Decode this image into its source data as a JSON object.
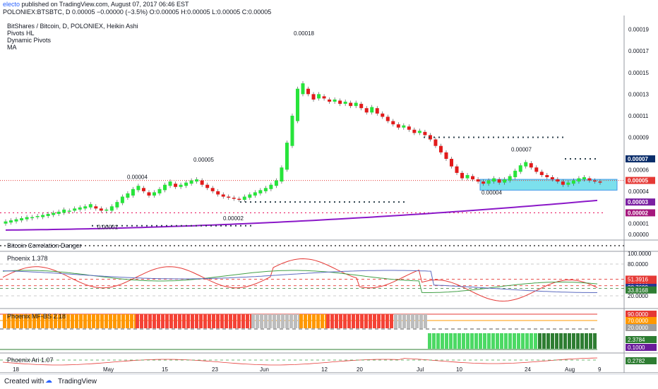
{
  "header": {
    "publisher": "electo",
    "published_text": "published on TradingView.com, August 07, 2017 06:46 EST",
    "symbol_line": "POLONIEX:BTSBTC, D  0.00005  −0.00000 (−3.5%)  O:0.00005  H:0.00005  L:0.00005  C:0.00005"
  },
  "legend": {
    "title": "BitShares / Bitcoin, D, POLONIEX, Heikin Ashi",
    "indicators": [
      "Pivots HL",
      "Dynamic Pivots",
      "MA"
    ]
  },
  "panes": {
    "btc_danger": "Bitcoin Correlation Danger",
    "phoenix": "Phoenix 1.378",
    "mfbs": "Phoenix MF-BS 2.18",
    "ari": "Phoenix Ari 1.07"
  },
  "footer": {
    "created_with": "Created with",
    "brand": "TradingView"
  },
  "colors": {
    "bull": "#27e43b",
    "bear": "#e21b1b",
    "ma": "#8b18c8",
    "zone": "#66dbea",
    "pivot_dots": "#2a3e4a",
    "price_line": "#e53935",
    "pink_dots": "#e91e63",
    "axis_blue": "#0b2e6b",
    "axis_purple": "#7b1fa2",
    "axis_magenta": "#a5177d",
    "axis_red": "#e53935",
    "axis_green": "#2e7d32"
  },
  "chart_data": {
    "type": "candlestick",
    "title": "BitShares / Bitcoin, D, POLONIEX, Heikin Ashi",
    "y_axis": [
      "0.00019",
      "0.00017",
      "0.00015",
      "0.00013",
      "0.00011",
      "0.00009",
      "0.00007",
      "0.00006",
      "0.00005",
      "0.00004",
      "0.00003",
      "0.00002",
      "0.00001",
      "0.00000"
    ],
    "x_axis": [
      "18",
      "May",
      "15",
      "23",
      "Jun",
      "12",
      "20",
      "Jul",
      "10",
      "24",
      "Aug",
      "9"
    ],
    "price_labels": [
      {
        "text": "0.00007",
        "kind": "blue"
      },
      {
        "text": "0.00005",
        "kind": "red"
      },
      {
        "text": "0.00003",
        "kind": "purple"
      },
      {
        "text": "0.00002",
        "kind": "magenta"
      }
    ],
    "pivot_annotations": [
      {
        "text": "0.00001"
      },
      {
        "text": "0.00004"
      },
      {
        "text": "0.00005"
      },
      {
        "text": "0.00002"
      },
      {
        "text": "0.00018"
      },
      {
        "text": "0.00004"
      },
      {
        "text": "0.00007"
      }
    ],
    "candles": [
      [
        1.0,
        1.2
      ],
      [
        1.1,
        1.3
      ],
      [
        1.2,
        1.4
      ],
      [
        1.3,
        1.5
      ],
      [
        1.4,
        1.6
      ],
      [
        1.5,
        1.6
      ],
      [
        1.6,
        1.7
      ],
      [
        1.6,
        1.8
      ],
      [
        1.7,
        1.9
      ],
      [
        1.8,
        2.0
      ],
      [
        1.9,
        2.1
      ],
      [
        2.0,
        2.3
      ],
      [
        2.1,
        2.2
      ],
      [
        2.2,
        2.4
      ],
      [
        2.3,
        2.5
      ],
      [
        2.4,
        2.6
      ],
      [
        2.5,
        2.8
      ],
      [
        2.6,
        2.4
      ],
      [
        2.4,
        2.2
      ],
      [
        2.2,
        2.3
      ],
      [
        2.2,
        2.6
      ],
      [
        2.5,
        3.0
      ],
      [
        2.9,
        3.5
      ],
      [
        3.4,
        3.8
      ],
      [
        3.6,
        4.2
      ],
      [
        4.1,
        4.5
      ],
      [
        4.3,
        4.0
      ],
      [
        3.9,
        3.6
      ],
      [
        3.6,
        3.9
      ],
      [
        3.8,
        4.2
      ],
      [
        4.1,
        4.6
      ],
      [
        4.5,
        4.9
      ],
      [
        4.7,
        4.4
      ],
      [
        4.4,
        4.6
      ],
      [
        4.5,
        4.8
      ],
      [
        4.7,
        5.0
      ],
      [
        4.9,
        5.1
      ],
      [
        5.0,
        4.6
      ],
      [
        4.6,
        4.3
      ],
      [
        4.3,
        4.0
      ],
      [
        4.0,
        3.7
      ],
      [
        3.7,
        3.5
      ],
      [
        3.5,
        3.4
      ],
      [
        3.4,
        3.3
      ],
      [
        3.3,
        3.2
      ],
      [
        3.2,
        3.5
      ],
      [
        3.4,
        3.7
      ],
      [
        3.6,
        3.9
      ],
      [
        3.8,
        4.1
      ],
      [
        4.0,
        4.3
      ],
      [
        4.2,
        4.6
      ],
      [
        4.5,
        5.0
      ],
      [
        4.9,
        6.2
      ],
      [
        6.0,
        8.5
      ],
      [
        8.2,
        11.0
      ],
      [
        10.5,
        13.5
      ],
      [
        13.0,
        14.0
      ],
      [
        13.5,
        13.0
      ],
      [
        13.0,
        12.5
      ],
      [
        12.6,
        13.0
      ],
      [
        12.8,
        12.6
      ],
      [
        12.5,
        12.3
      ],
      [
        12.3,
        12.5
      ],
      [
        12.4,
        12.1
      ],
      [
        12.1,
        12.3
      ],
      [
        12.2,
        11.9
      ],
      [
        11.9,
        12.2
      ],
      [
        12.1,
        11.7
      ],
      [
        11.7,
        11.3
      ],
      [
        11.3,
        11.8
      ],
      [
        11.7,
        11.2
      ],
      [
        11.2,
        10.9
      ],
      [
        10.9,
        10.5
      ],
      [
        10.5,
        10.2
      ],
      [
        10.2,
        9.9
      ],
      [
        9.9,
        10.1
      ],
      [
        10.0,
        9.7
      ],
      [
        9.7,
        9.4
      ],
      [
        9.4,
        9.6
      ],
      [
        9.5,
        9.2
      ],
      [
        9.2,
        8.8
      ],
      [
        8.8,
        8.2
      ],
      [
        8.2,
        7.6
      ],
      [
        7.6,
        7.0
      ],
      [
        7.0,
        6.3
      ],
      [
        6.3,
        5.7
      ],
      [
        5.7,
        5.2
      ],
      [
        5.2,
        5.5
      ],
      [
        5.4,
        5.1
      ],
      [
        5.1,
        4.9
      ],
      [
        4.9,
        4.7
      ],
      [
        4.7,
        5.0
      ],
      [
        4.9,
        5.2
      ],
      [
        5.1,
        4.8
      ],
      [
        4.8,
        5.1
      ],
      [
        5.0,
        5.4
      ],
      [
        5.3,
        5.9
      ],
      [
        5.8,
        6.4
      ],
      [
        6.3,
        6.7
      ],
      [
        6.6,
        6.2
      ],
      [
        6.2,
        5.8
      ],
      [
        5.8,
        5.5
      ],
      [
        5.5,
        5.3
      ],
      [
        5.3,
        5.1
      ],
      [
        5.1,
        4.9
      ],
      [
        4.9,
        4.6
      ],
      [
        4.6,
        4.8
      ],
      [
        4.7,
        5.0
      ],
      [
        4.9,
        5.2
      ],
      [
        5.1,
        5.3
      ],
      [
        5.2,
        5.0
      ],
      [
        5.0,
        4.9
      ],
      [
        4.9,
        4.8
      ]
    ]
  }
}
